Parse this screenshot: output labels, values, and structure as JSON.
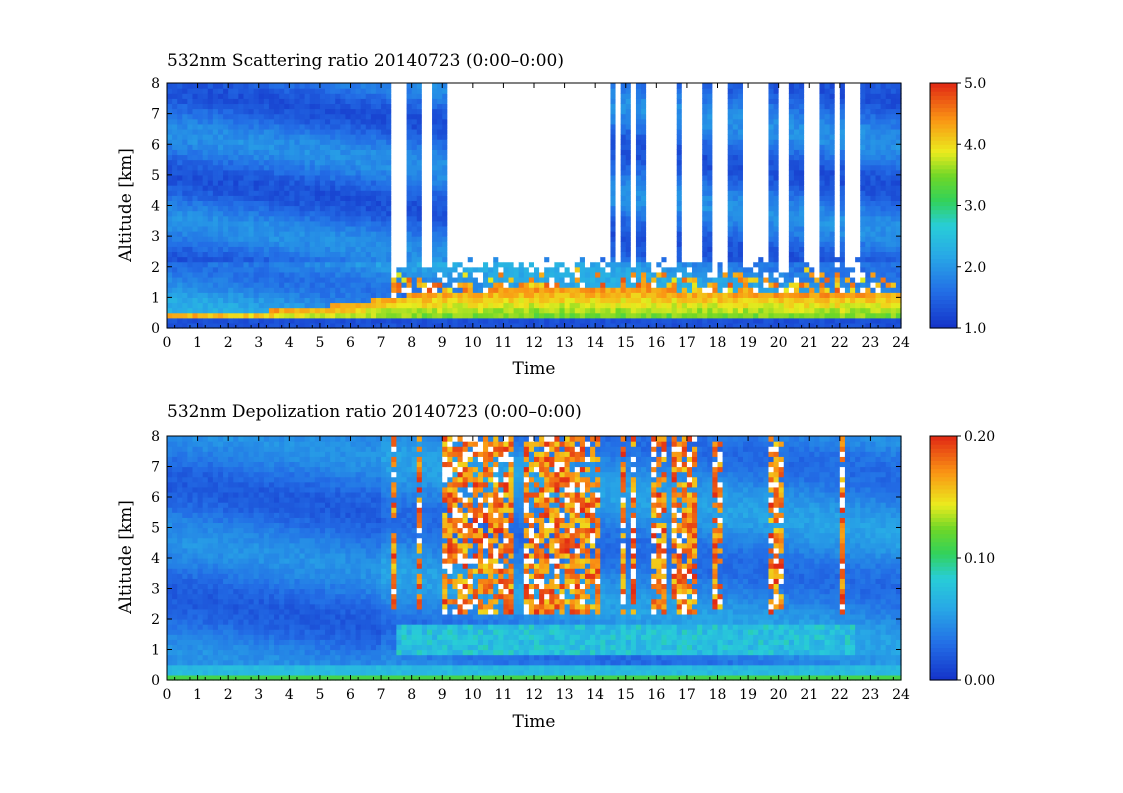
{
  "chart_data": [
    {
      "type": "heatmap",
      "title": "532nm Scattering ratio  20140723 (0:00–0:00)",
      "xlabel": "Time",
      "ylabel": "Altitude [km]",
      "xlim": [
        0,
        24
      ],
      "ylim": [
        0,
        8
      ],
      "x_ticks": [
        "0",
        "1",
        "2",
        "3",
        "4",
        "5",
        "6",
        "7",
        "8",
        "9",
        "10",
        "11",
        "12",
        "13",
        "14",
        "15",
        "16",
        "17",
        "18",
        "19",
        "20",
        "21",
        "22",
        "23",
        "24"
      ],
      "y_ticks": [
        "0",
        "1",
        "2",
        "3",
        "4",
        "5",
        "6",
        "7",
        "8"
      ],
      "colorbar": {
        "range": [
          1.0,
          5.0
        ],
        "ticks": [
          "1.0",
          "2.0",
          "3.0",
          "4.0",
          "5.0"
        ]
      },
      "features": {
        "boundary_layer_top_km": [
          [
            0,
            0.45
          ],
          [
            3,
            0.55
          ],
          [
            6,
            0.8
          ],
          [
            7,
            1.0
          ],
          [
            9,
            1.2
          ],
          [
            12,
            1.3
          ],
          [
            15,
            1.3
          ],
          [
            18,
            1.2
          ],
          [
            21,
            1.1
          ],
          [
            24,
            1.2
          ]
        ],
        "cloud_layer": {
          "time": [
            7.3,
            23.8
          ],
          "base_km": 0.8,
          "top_km": 2.2,
          "value": 5.0
        },
        "attenuated_columns": [
          [
            7.3,
            7.8
          ],
          [
            8.3,
            8.7
          ],
          [
            9.1,
            14.5
          ],
          [
            14.6,
            14.9
          ],
          [
            15.1,
            15.3
          ],
          [
            15.6,
            16.6
          ],
          [
            16.8,
            17.5
          ],
          [
            17.8,
            18.3
          ],
          [
            18.8,
            19.6
          ],
          [
            20.0,
            20.3
          ],
          [
            20.9,
            21.3
          ],
          [
            21.9,
            22.0
          ],
          [
            22.2,
            22.6
          ],
          [
            22.8,
            22.9
          ]
        ]
      }
    },
    {
      "type": "heatmap",
      "title": "532nm Depolization ratio  20140723 (0:00–0:00)",
      "xlabel": "Time",
      "ylabel": "Altitude [km]",
      "xlim": [
        0,
        24
      ],
      "ylim": [
        0,
        8
      ],
      "x_ticks": [
        "0",
        "1",
        "2",
        "3",
        "4",
        "5",
        "6",
        "7",
        "8",
        "9",
        "10",
        "11",
        "12",
        "13",
        "14",
        "15",
        "16",
        "17",
        "18",
        "19",
        "20",
        "21",
        "22",
        "23",
        "24"
      ],
      "y_ticks": [
        "0",
        "1",
        "2",
        "3",
        "4",
        "5",
        "6",
        "7",
        "8"
      ],
      "colorbar": {
        "range": [
          0.0,
          0.2
        ],
        "ticks": [
          "0.00",
          "0.10",
          "0.20"
        ]
      },
      "features": {
        "high_depol_columns": [
          [
            7.3,
            7.5
          ],
          [
            8.2,
            8.4
          ],
          [
            9.0,
            10.0
          ],
          [
            10.0,
            11.3
          ],
          [
            11.6,
            13.8
          ],
          [
            13.8,
            14.2
          ],
          [
            14.8,
            15.0
          ],
          [
            15.2,
            15.4
          ],
          [
            15.8,
            16.4
          ],
          [
            16.5,
            17.3
          ],
          [
            17.9,
            18.2
          ],
          [
            19.6,
            19.8
          ],
          [
            19.9,
            20.1
          ],
          [
            22.0,
            22.2
          ]
        ],
        "high_depol_value": 0.2,
        "low_layer_km": [
          0.8,
          1.8
        ],
        "low_layer_value": 0.07
      }
    }
  ]
}
